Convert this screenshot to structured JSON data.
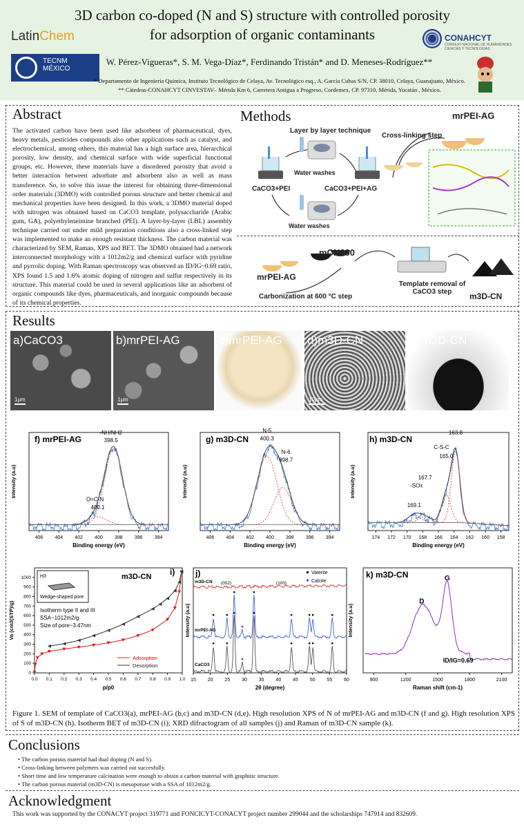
{
  "header": {
    "title": "3D carbon co-doped (N and S) structure with controlled porosity for adsorption of organic contaminants",
    "authors": "W. Pérez-Vigueras*, S. M. Vega-Díaz*, Ferdinando Tristán* and D. Meneses-Rodríguez**",
    "affiliation1": "* Departamento de Ingeniería Química, Instituto Tecnológico de Celaya, Av. Tecnológico esq., A. García Cubas S/N, CP. 38010, Celaya, Guanajuato, México.",
    "affiliation2": "** Cátedras-CONAHCYT CINVESTAV– Mérida Km 6, Carretera Antigua a Progreso, Cordemex, CP. 97310, Mérida, Yucatán , México.",
    "logos": {
      "latinchem_a": "Latin",
      "latinchem_b": "Chem",
      "tecnm": "TECNM",
      "tecnm_sub": "MÉXICO",
      "conahcyt": "CONAHCYT",
      "conahcyt_sub": "CONSEJO NACIONAL DE HUMANIDADES CIENCIAS Y TECNOLOGÍAS"
    }
  },
  "abstract": {
    "heading": "Abstract",
    "text": "The activated carbon have been used like adsorbent of pharmaceutical, dyes, heavy metals, pesticides compounds also other applications such as catalyst, and electrochemical, among others, this material has a high surface area, hierarchical porosity, low density, and chemical surface with wide superficial functional groups, etc. However, these materials have a disordered porosity that avoid a better interaction between adsorbate and adsorbent also as well as mass transference. So, to solve this issue the interest for obtaining three-dimensional order materials (3DMO) with controlled porous structure and better chemical and mechanical properties have been designed. In this work, a 3DMO material doped with nitrogen was obtained based on CaCO3 template, polysaccharide (Arabic gum, GA), polyethyleneimine branched (PEI). A layer-by-layer (LBL) assembly technique carried out under mild preparation conditions also a cross-linked step was implemented to make an enough resistant thickness. The carbon material was characterized by SEM, Raman, XPS and BET. The 3DMO obtained had a network interconnected morphology with a 1012m2/g and chemical surface with pyridine and pyrrolic doping. With Raman spectroscopy was observed an ID/IG~0.69 ratio, XPS found 1.5 and 1.6% atomic doping of nitrogen and sulfur respectively in its structure. This material could be used in several applications like an adsorbent of organic compounds like dyes, pharmaceuticals, and inorganic compounds because of its chemical properties."
  },
  "methods": {
    "heading": "Methods",
    "lbl": "Layer by layer technique",
    "water1": "Water washes",
    "water2": "Water washes",
    "caco3_pei": "CaCO3+PEI",
    "caco3_pei_ag": "CaCO3+PEI+AG",
    "crosslink": "Cross-linking step",
    "mr_label": "mrPEI-AG",
    "mr2": "mrPEI-AG",
    "mcn": "mCN600",
    "carbonization": "Carbonization at 600 °C step",
    "template_removal": "Template removal of CaCO3 step",
    "m3d": "m3D-CN"
  },
  "results": {
    "heading": "Results",
    "panels": [
      {
        "label": "a)",
        "name": "CaCO3",
        "scale": "1μm"
      },
      {
        "label": "b)",
        "name": "mrPEI-AG",
        "scale": "1μm"
      },
      {
        "label": "c)",
        "name": "mrPEI-AG",
        "scale": ""
      },
      {
        "label": "d)",
        "name": "m3D-CN",
        "scale": "10μm"
      },
      {
        "label": "e)",
        "name": "m3D-CN",
        "scale": ""
      }
    ]
  },
  "chart_data": [
    {
      "panel": "f)",
      "type": "line",
      "title": "mrPEI-AG",
      "xlabel": "Binding energy (eV)",
      "ylabel": "Intensity (a.u)",
      "xlim": [
        407,
        393
      ],
      "xticks": [
        406,
        404,
        402,
        400,
        398,
        396,
        394
      ],
      "annotations": [
        {
          "text": "-NH/NH2",
          "x": 398.5,
          "value": "398.5"
        },
        {
          "text": "O=C-N",
          "x": 400.1,
          "value": "400.1"
        }
      ]
    },
    {
      "panel": "g)",
      "type": "line",
      "title": "m3D-CN",
      "xlabel": "Binding energy (eV)",
      "ylabel": "Intensity (a.u)",
      "xlim": [
        407,
        393
      ],
      "xticks": [
        406,
        404,
        402,
        400,
        398,
        396,
        394
      ],
      "annotations": [
        {
          "text": "N-5",
          "x": 400.3,
          "value": "400.3"
        },
        {
          "text": "N-6",
          "x": 398.7,
          "value": "398.7"
        }
      ]
    },
    {
      "panel": "h)",
      "type": "line",
      "title": "m3D-CN",
      "xlabel": "Binding energy (eV)",
      "ylabel": "Intensity (a.u)",
      "xlim": [
        175,
        157
      ],
      "xticks": [
        174,
        172,
        170,
        168,
        166,
        164,
        162,
        160,
        158
      ],
      "annotations": [
        {
          "text": "C-S-C",
          "x": 165.0,
          "value": "165.0"
        },
        {
          "text": "",
          "x": 163.8,
          "value": "163.8"
        },
        {
          "text": "-SOx",
          "x": 167.7,
          "value": "167.7"
        },
        {
          "text": "",
          "x": 169.1,
          "value": "169.1"
        }
      ]
    },
    {
      "panel": "i)",
      "type": "line",
      "title": "m3D-CN",
      "xlabel": "p/p0",
      "ylabel": "Va (cm3(STP)/g)",
      "xlim": [
        0,
        1
      ],
      "xticks": [
        0.0,
        0.1,
        0.2,
        0.3,
        0.4,
        0.5,
        0.6,
        0.7,
        0.8,
        0.9,
        1.0
      ],
      "ylim": [
        0,
        1100
      ],
      "yticks": [
        0,
        100,
        200,
        300,
        400,
        500,
        600,
        700,
        800,
        900,
        1000
      ],
      "series": [
        {
          "name": "Adsorption",
          "color": "#e01818",
          "x": [
            0.0,
            0.005,
            0.02,
            0.05,
            0.1,
            0.2,
            0.3,
            0.4,
            0.5,
            0.6,
            0.7,
            0.8,
            0.9,
            0.95,
            0.98,
            0.995
          ],
          "y": [
            10,
            90,
            160,
            200,
            225,
            250,
            270,
            290,
            315,
            345,
            390,
            450,
            560,
            680,
            850,
            1060
          ]
        },
        {
          "name": "Desorption",
          "color": "#333333",
          "x": [
            0.995,
            0.98,
            0.95,
            0.9,
            0.85,
            0.8,
            0.7,
            0.6,
            0.5,
            0.4,
            0.3,
            0.2,
            0.1
          ],
          "y": [
            1060,
            950,
            860,
            780,
            720,
            670,
            590,
            510,
            445,
            390,
            340,
            305,
            280
          ]
        }
      ],
      "inset": {
        "h": "H3",
        "pore": "Wedge-shaped pore"
      },
      "notes": [
        "Isotherm type II and III",
        "SSA~1012m2/g",
        "Size of pore~3.47nm"
      ]
    },
    {
      "panel": "j)",
      "type": "line",
      "xlabel": "2θ (degree)",
      "ylabel": "Intensity (a.u)",
      "xlim": [
        15,
        60
      ],
      "xticks": [
        15,
        20,
        25,
        30,
        35,
        40,
        45,
        50,
        55,
        60
      ],
      "legend": [
        "Vaterite",
        "Calcite"
      ],
      "series": [
        {
          "name": "m3D-CN"
        },
        {
          "name": "mrPEI-AG"
        },
        {
          "name": "CaCO3"
        }
      ],
      "labels": [
        "(002)",
        "(100)"
      ]
    },
    {
      "panel": "k)",
      "type": "line",
      "title": "m3D-CN",
      "xlabel": "Raman shift (cm-1)",
      "ylabel": "Intensity (a.u)",
      "xlim": [
        800,
        2200
      ],
      "xticks": [
        900,
        1200,
        1500,
        1800,
        2100
      ],
      "peaks": [
        {
          "name": "D",
          "x": 1350
        },
        {
          "name": "G",
          "x": 1590
        }
      ],
      "ratio": "ID/IG=0.69"
    }
  ],
  "caption": "Figure 1. SEM of template of CaCO3(a), mrPEI-AG (b,c) and m3D-CN (d,e). High resolution XPS of N of mrPEI-AG and m3D-CN (f and g). High resolution XPS of S of m3D-CN (h). Isotherm BET of m3D-CN (i), XRD difractogram of all samples (j) and Raman of m3D-CN sample (k).",
  "conclusions": {
    "heading": "Conclusions",
    "items": [
      "The carbon porous material had dual doping (N and S).",
      "Cross-linking between polymers was carried out succesfully.",
      "Short time and low temperature calcination were enough to obtain a carbon material with graphitic structure.",
      "The carbon porous material (m3D-CN) is mesoporose with a SSA of 1012m2/g."
    ]
  },
  "acknowledgment": {
    "heading": "Acknowledgment",
    "text": "This work was supported by the CONACYT project 319771 and FONCICYT-CONACYT project number 299044 and the scholarships 747914 and 832609."
  }
}
